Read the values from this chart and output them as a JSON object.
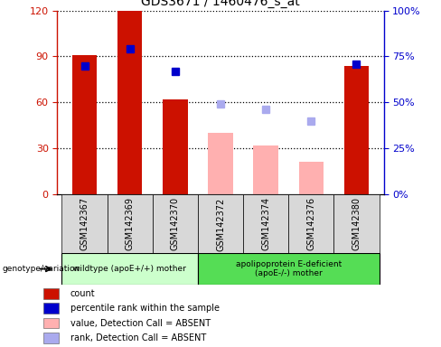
{
  "title": "GDS3671 / 1460476_s_at",
  "samples": [
    "GSM142367",
    "GSM142369",
    "GSM142370",
    "GSM142372",
    "GSM142374",
    "GSM142376",
    "GSM142380"
  ],
  "count_values": [
    91,
    120,
    62,
    null,
    null,
    null,
    84
  ],
  "count_absent": [
    null,
    null,
    null,
    40,
    32,
    21,
    null
  ],
  "percentile_values": [
    70,
    79,
    67,
    null,
    null,
    null,
    71
  ],
  "percentile_absent": [
    null,
    null,
    null,
    49,
    46,
    40,
    null
  ],
  "ylim_left": [
    0,
    120
  ],
  "ylim_right": [
    0,
    100
  ],
  "yticks_left": [
    0,
    30,
    60,
    90,
    120
  ],
  "yticks_right": [
    0,
    25,
    50,
    75,
    100
  ],
  "ytick_labels_left": [
    "0",
    "30",
    "60",
    "90",
    "120"
  ],
  "ytick_labels_right": [
    "0%",
    "25%",
    "50%",
    "75%",
    "100%"
  ],
  "group1_label": "wildtype (apoE+/+) mother",
  "group2_label": "apolipoprotein E-deficient\n(apoE-/-) mother",
  "group1_indices": [
    0,
    1,
    2
  ],
  "group2_indices": [
    3,
    4,
    5,
    6
  ],
  "color_count": "#cc1100",
  "color_count_absent": "#ffb0b0",
  "color_percentile": "#0000cc",
  "color_percentile_absent": "#aaaaee",
  "color_group1": "#ccffcc",
  "color_group2": "#55dd55",
  "bar_width": 0.55,
  "marker_size": 6,
  "legend_items": [
    {
      "label": "count",
      "color": "#cc1100"
    },
    {
      "label": "percentile rank within the sample",
      "color": "#0000cc"
    },
    {
      "label": "value, Detection Call = ABSENT",
      "color": "#ffb0b0"
    },
    {
      "label": "rank, Detection Call = ABSENT",
      "color": "#aaaaee"
    }
  ]
}
